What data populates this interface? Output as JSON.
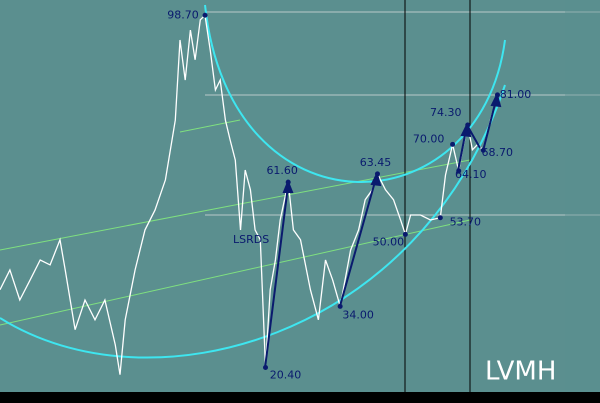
{
  "chart_data": {
    "type": "line",
    "symbol": "LVMH",
    "note": "LSRDS",
    "x": [
      1996.3,
      1996.51,
      1996.72,
      1996.94,
      1997.15,
      1997.36,
      1997.57,
      1997.68,
      1997.89,
      1998.1,
      1998.31,
      1998.52,
      1998.74,
      1998.84,
      1998.95,
      1999.16,
      1999.37,
      1999.58,
      1999.8,
      2000.01,
      2000.11,
      2000.22,
      2000.33,
      2000.43,
      2000.54,
      2000.64,
      2000.75,
      2000.86,
      2000.96,
      2001.07,
      2001.17,
      2001.28,
      2001.39,
      2001.49,
      2001.6,
      2001.7,
      2001.81,
      2001.92,
      2002.02,
      2002.13,
      2002.23,
      2002.4,
      2002.51,
      2002.66,
      2002.87,
      2003.04,
      2003.19,
      2003.34,
      2003.5,
      2003.72,
      2003.89,
      2004.03,
      2004.18,
      2004.29,
      2004.46,
      2004.63,
      2004.78,
      2004.88,
      2004.99,
      2005.2,
      2005.41,
      2005.62,
      2005.73,
      2005.88,
      2006.01,
      2006.09,
      2006.2,
      2006.3,
      2006.41,
      2006.53,
      2006.68,
      2006.83
    ],
    "series": [
      {
        "color": "#ffffff",
        "values": [
          37.7,
          42.1,
          35.4,
          39.9,
          44.3,
          43.2,
          48.8,
          42.1,
          28.8,
          35.4,
          31.0,
          35.4,
          25.4,
          18.8,
          31.0,
          42.1,
          51.0,
          55.4,
          62.1,
          75.4,
          93.2,
          84.3,
          95.4,
          88.8,
          97.7,
          98.7,
          91.0,
          82.1,
          84.3,
          75.4,
          71.0,
          66.5,
          51.0,
          64.3,
          59.9,
          51.0,
          48.8,
          20.4,
          37.7,
          44.3,
          53.2,
          61.6,
          51.0,
          48.8,
          37.7,
          31.0,
          44.3,
          39.9,
          34.0,
          46.5,
          51.0,
          57.7,
          59.9,
          63.45,
          59.9,
          57.7,
          53.2,
          50.0,
          54.3,
          54.3,
          53.2,
          53.7,
          63.2,
          70.0,
          64.1,
          68.8,
          74.3,
          68.8,
          70.0,
          68.7,
          75.4,
          81.0
        ]
      }
    ],
    "annotations": [
      {
        "label": "98.70",
        "x": 2000.64,
        "value": 98.7
      },
      {
        "label": "61.60",
        "x": 2002.4,
        "value": 61.6
      },
      {
        "label": "20.40",
        "x": 2001.92,
        "value": 20.4
      },
      {
        "label": "63.45",
        "x": 2004.29,
        "value": 63.45
      },
      {
        "label": "34.00",
        "x": 2003.5,
        "value": 34.0
      },
      {
        "label": "50.00",
        "x": 2004.88,
        "value": 50.0
      },
      {
        "label": "70.00",
        "x": 2005.88,
        "value": 70.0
      },
      {
        "label": "74.30",
        "x": 2006.2,
        "value": 74.3
      },
      {
        "label": "64.10",
        "x": 2006.01,
        "value": 64.1
      },
      {
        "label": "53.70",
        "x": 2005.62,
        "value": 53.7
      },
      {
        "label": "68.70",
        "x": 2006.53,
        "value": 68.7
      },
      {
        "label": "81.00",
        "x": 2006.83,
        "value": 81.0
      }
    ],
    "xlim": [
      1996.3,
      2009.0
    ],
    "ylim": [
      15.4,
      102.1
    ],
    "annotation_color": "#0a1a6e"
  }
}
